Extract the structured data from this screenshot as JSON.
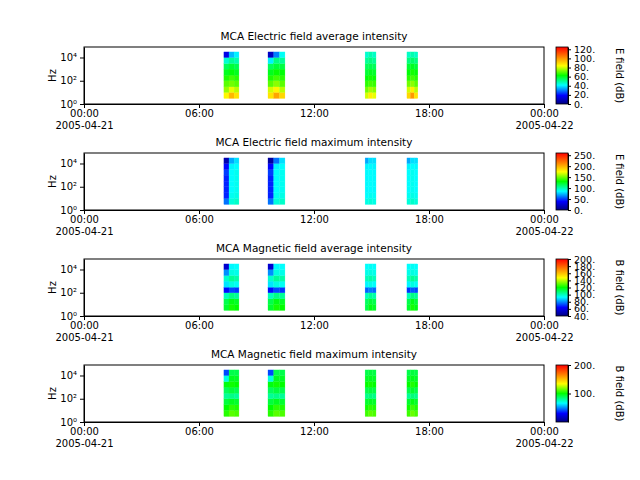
{
  "chart_data": [
    {
      "type": "heatmap",
      "title": "MCA  Electric field average intensity",
      "ylabel": "Hz",
      "log": "y",
      "xlim": [
        "2005-04-21 00:00",
        "2005-04-22 00:00"
      ],
      "xticks": [
        {
          "value": "2005-04-21 00:00",
          "label": "00:00\n2005-04-21"
        },
        {
          "value": "2005-04-21 06:00",
          "label": "06:00"
        },
        {
          "value": "2005-04-21 12:00",
          "label": "12:00"
        },
        {
          "value": "2005-04-21 18:00",
          "label": "18:00"
        },
        {
          "value": "2005-04-22 00:00",
          "label": "00:00\n2005-04-22"
        }
      ],
      "ylim": [
        1,
        80000
      ],
      "yticks": [
        {
          "value": 1,
          "label": "10⁰"
        },
        {
          "value": 100,
          "label": "10²"
        },
        {
          "value": 10000,
          "label": "10⁴"
        }
      ],
      "time_bins": [
        [
          "2005-04-21 07:18",
          "2005-04-21 07:34"
        ],
        [
          "2005-04-21 07:34",
          "2005-04-21 07:50"
        ],
        [
          "2005-04-21 07:50",
          "2005-04-21 08:05"
        ],
        [
          "2005-04-21 09:36",
          "2005-04-21 09:54"
        ],
        [
          "2005-04-21 09:54",
          "2005-04-21 10:12"
        ],
        [
          "2005-04-21 10:12",
          "2005-04-21 10:29"
        ],
        [
          "2005-04-21 14:40",
          "2005-04-21 14:51"
        ],
        [
          "2005-04-21 14:51",
          "2005-04-21 15:03"
        ],
        [
          "2005-04-21 15:03",
          "2005-04-21 15:14"
        ],
        [
          "2005-04-21 16:51",
          "2005-04-21 17:02"
        ],
        [
          "2005-04-21 17:02",
          "2005-04-21 17:14"
        ],
        [
          "2005-04-21 17:14",
          "2005-04-21 17:25"
        ]
      ],
      "frequency_bins": [
        3,
        10,
        30,
        100,
        300,
        1000,
        3000,
        10000,
        30000
      ],
      "cells": [
        [
          85,
          75,
          70,
          65,
          60,
          55,
          45,
          15
        ],
        [
          95,
          82,
          72,
          68,
          62,
          58,
          50,
          35
        ],
        [
          88,
          78,
          70,
          66,
          60,
          56,
          48,
          40
        ],
        [
          88,
          80,
          70,
          65,
          60,
          55,
          40,
          10
        ],
        [
          98,
          85,
          74,
          68,
          63,
          58,
          52,
          30
        ],
        [
          90,
          78,
          70,
          66,
          62,
          57,
          50,
          42
        ],
        [
          80,
          72,
          66,
          62,
          58,
          55,
          50,
          45
        ],
        [
          86,
          76,
          68,
          64,
          60,
          56,
          52,
          48
        ],
        [
          82,
          74,
          67,
          63,
          59,
          55,
          50,
          46
        ],
        [
          90,
          80,
          72,
          66,
          62,
          58,
          52,
          46
        ],
        [
          100,
          86,
          74,
          68,
          64,
          60,
          54,
          48
        ],
        [
          88,
          78,
          70,
          66,
          62,
          58,
          52,
          46
        ]
      ],
      "colorbar": {
        "label": "E field (dB)",
        "range": [
          0,
          125
        ],
        "ticks": [
          {
            "value": 0,
            "label": "0."
          },
          {
            "value": 20,
            "label": "20."
          },
          {
            "value": 40,
            "label": "40."
          },
          {
            "value": 60,
            "label": "60."
          },
          {
            "value": 80,
            "label": "80."
          },
          {
            "value": 100,
            "label": "100."
          },
          {
            "value": 120,
            "label": "120."
          }
        ]
      }
    },
    {
      "type": "heatmap",
      "title": "MCA  Electric field maximum intensity",
      "ylabel": "Hz",
      "log": "y",
      "xlim": [
        "2005-04-21 00:00",
        "2005-04-22 00:00"
      ],
      "xticks": [
        {
          "value": "2005-04-21 00:00",
          "label": "00:00\n2005-04-21"
        },
        {
          "value": "2005-04-21 06:00",
          "label": "06:00"
        },
        {
          "value": "2005-04-21 12:00",
          "label": "12:00"
        },
        {
          "value": "2005-04-21 18:00",
          "label": "18:00"
        },
        {
          "value": "2005-04-22 00:00",
          "label": "00:00\n2005-04-22"
        }
      ],
      "ylim": [
        1,
        80000
      ],
      "yticks": [
        {
          "value": 1,
          "label": "10⁰"
        },
        {
          "value": 100,
          "label": "10²"
        },
        {
          "value": 10000,
          "label": "10⁴"
        }
      ],
      "time_bins": [
        [
          "2005-04-21 07:18",
          "2005-04-21 07:34"
        ],
        [
          "2005-04-21 07:34",
          "2005-04-21 07:50"
        ],
        [
          "2005-04-21 07:50",
          "2005-04-21 08:05"
        ],
        [
          "2005-04-21 09:36",
          "2005-04-21 09:54"
        ],
        [
          "2005-04-21 09:54",
          "2005-04-21 10:12"
        ],
        [
          "2005-04-21 10:12",
          "2005-04-21 10:29"
        ],
        [
          "2005-04-21 14:40",
          "2005-04-21 14:51"
        ],
        [
          "2005-04-21 14:51",
          "2005-04-21 15:03"
        ],
        [
          "2005-04-21 15:03",
          "2005-04-21 15:14"
        ],
        [
          "2005-04-21 16:51",
          "2005-04-21 17:02"
        ],
        [
          "2005-04-21 17:02",
          "2005-04-21 17:14"
        ],
        [
          "2005-04-21 17:14",
          "2005-04-21 17:25"
        ]
      ],
      "frequency_bins": [
        3,
        10,
        30,
        100,
        300,
        1000,
        3000,
        10000,
        30000
      ],
      "cells": [
        [
          60,
          45,
          45,
          45,
          45,
          50,
          40,
          15
        ],
        [
          92,
          88,
          86,
          86,
          86,
          86,
          84,
          70
        ],
        [
          95,
          90,
          88,
          88,
          88,
          88,
          86,
          80
        ],
        [
          60,
          45,
          45,
          45,
          45,
          50,
          40,
          10
        ],
        [
          92,
          88,
          86,
          86,
          86,
          86,
          84,
          60
        ],
        [
          95,
          90,
          88,
          88,
          88,
          88,
          86,
          80
        ],
        [
          90,
          86,
          85,
          85,
          85,
          85,
          84,
          70
        ],
        [
          92,
          88,
          86,
          86,
          86,
          86,
          85,
          80
        ],
        [
          90,
          87,
          85,
          85,
          85,
          85,
          84,
          80
        ],
        [
          92,
          88,
          86,
          86,
          86,
          86,
          84,
          70
        ],
        [
          95,
          90,
          88,
          88,
          88,
          88,
          86,
          80
        ],
        [
          92,
          88,
          86,
          86,
          86,
          86,
          85,
          80
        ]
      ],
      "colorbar": {
        "label": "E field (dB)",
        "range": [
          0,
          260
        ],
        "ticks": [
          {
            "value": 0,
            "label": "0."
          },
          {
            "value": 50,
            "label": "50."
          },
          {
            "value": 100,
            "label": "100."
          },
          {
            "value": 150,
            "label": "150."
          },
          {
            "value": 200,
            "label": "200."
          },
          {
            "value": 250,
            "label": "250."
          }
        ]
      }
    },
    {
      "type": "heatmap",
      "title": "MCA  Magnetic field average intensity",
      "ylabel": "Hz",
      "log": "y",
      "xlim": [
        "2005-04-21 00:00",
        "2005-04-22 00:00"
      ],
      "xticks": [
        {
          "value": "2005-04-21 00:00",
          "label": "00:00\n2005-04-21"
        },
        {
          "value": "2005-04-21 06:00",
          "label": "06:00"
        },
        {
          "value": "2005-04-21 12:00",
          "label": "12:00"
        },
        {
          "value": "2005-04-21 18:00",
          "label": "18:00"
        },
        {
          "value": "2005-04-22 00:00",
          "label": "00:00\n2005-04-22"
        }
      ],
      "ylim": [
        1,
        80000
      ],
      "yticks": [
        {
          "value": 1,
          "label": "10⁰"
        },
        {
          "value": 100,
          "label": "10²"
        },
        {
          "value": 10000,
          "label": "10⁴"
        }
      ],
      "time_bins": [
        [
          "2005-04-21 07:18",
          "2005-04-21 07:34"
        ],
        [
          "2005-04-21 07:34",
          "2005-04-21 07:50"
        ],
        [
          "2005-04-21 07:50",
          "2005-04-21 08:05"
        ],
        [
          "2005-04-21 09:36",
          "2005-04-21 09:54"
        ],
        [
          "2005-04-21 09:54",
          "2005-04-21 10:12"
        ],
        [
          "2005-04-21 10:12",
          "2005-04-21 10:29"
        ],
        [
          "2005-04-21 14:40",
          "2005-04-21 14:51"
        ],
        [
          "2005-04-21 14:51",
          "2005-04-21 15:03"
        ],
        [
          "2005-04-21 15:03",
          "2005-04-21 15:14"
        ],
        [
          "2005-04-21 16:51",
          "2005-04-21 17:02"
        ],
        [
          "2005-04-21 17:02",
          "2005-04-21 17:14"
        ],
        [
          "2005-04-21 17:14",
          "2005-04-21 17:25"
        ]
      ],
      "frequency_bins": [
        3,
        10,
        30,
        100,
        300,
        1000,
        3000,
        10000,
        30000
      ],
      "cells": [
        [
          115,
          112,
          100,
          65,
          90,
          98,
          80,
          55
        ],
        [
          122,
          118,
          106,
          72,
          96,
          104,
          96,
          92
        ],
        [
          120,
          116,
          104,
          70,
          94,
          102,
          95,
          93
        ],
        [
          115,
          112,
          100,
          65,
          90,
          98,
          80,
          55
        ],
        [
          122,
          118,
          106,
          72,
          96,
          104,
          96,
          92
        ],
        [
          120,
          116,
          104,
          70,
          94,
          102,
          95,
          93
        ],
        [
          112,
          110,
          100,
          75,
          92,
          100,
          95,
          93
        ],
        [
          118,
          114,
          104,
          78,
          95,
          102,
          96,
          94
        ],
        [
          116,
          112,
          102,
          76,
          93,
          100,
          95,
          93
        ],
        [
          115,
          112,
          100,
          70,
          92,
          100,
          95,
          93
        ],
        [
          122,
          118,
          106,
          74,
          96,
          104,
          96,
          94
        ],
        [
          118,
          114,
          104,
          72,
          94,
          102,
          95,
          93
        ]
      ],
      "colorbar": {
        "label": "B field (dB)",
        "range": [
          40,
          200
        ],
        "ticks": [
          {
            "value": 40,
            "label": "40."
          },
          {
            "value": 60,
            "label": "60."
          },
          {
            "value": 80,
            "label": "80."
          },
          {
            "value": 100,
            "label": "100."
          },
          {
            "value": 120,
            "label": "120."
          },
          {
            "value": 140,
            "label": "140."
          },
          {
            "value": 160,
            "label": "160."
          },
          {
            "value": 180,
            "label": "180."
          },
          {
            "value": 200,
            "label": "200."
          }
        ]
      }
    },
    {
      "type": "heatmap",
      "title": "MCA  Magnetic field maximum intensity",
      "ylabel": "Hz",
      "log": "y",
      "xlim": [
        "2005-04-21 00:00",
        "2005-04-22 00:00"
      ],
      "xticks": [
        {
          "value": "2005-04-21 00:00",
          "label": "00:00\n2005-04-21"
        },
        {
          "value": "2005-04-21 06:00",
          "label": "06:00"
        },
        {
          "value": "2005-04-21 12:00",
          "label": "12:00"
        },
        {
          "value": "2005-04-21 18:00",
          "label": "18:00"
        },
        {
          "value": "2005-04-22 00:00",
          "label": "00:00\n2005-04-22"
        }
      ],
      "ylim": [
        1,
        80000
      ],
      "yticks": [
        {
          "value": 1,
          "label": "10⁰"
        },
        {
          "value": 100,
          "label": "10²"
        },
        {
          "value": 10000,
          "label": "10⁴"
        }
      ],
      "time_bins": [
        [
          "2005-04-21 07:18",
          "2005-04-21 07:34"
        ],
        [
          "2005-04-21 07:34",
          "2005-04-21 07:50"
        ],
        [
          "2005-04-21 07:50",
          "2005-04-21 08:05"
        ],
        [
          "2005-04-21 09:36",
          "2005-04-21 09:54"
        ],
        [
          "2005-04-21 09:54",
          "2005-04-21 10:12"
        ],
        [
          "2005-04-21 10:12",
          "2005-04-21 10:29"
        ],
        [
          "2005-04-21 14:40",
          "2005-04-21 14:51"
        ],
        [
          "2005-04-21 14:51",
          "2005-04-21 15:03"
        ],
        [
          "2005-04-21 15:03",
          "2005-04-21 15:14"
        ],
        [
          "2005-04-21 16:51",
          "2005-04-21 17:02"
        ],
        [
          "2005-04-21 17:02",
          "2005-04-21 17:14"
        ],
        [
          "2005-04-21 17:14",
          "2005-04-21 17:25"
        ]
      ],
      "frequency_bins": [
        3,
        10,
        30,
        100,
        300,
        1000,
        3000,
        10000,
        30000
      ],
      "cells": [
        [
          105,
          100,
          92,
          80,
          88,
          98,
          70,
          40
        ],
        [
          112,
          106,
          96,
          82,
          92,
          102,
          96,
          90
        ],
        [
          110,
          104,
          94,
          80,
          90,
          100,
          95,
          90
        ],
        [
          105,
          100,
          92,
          80,
          88,
          98,
          70,
          40
        ],
        [
          112,
          106,
          96,
          82,
          92,
          102,
          96,
          90
        ],
        [
          110,
          104,
          94,
          80,
          90,
          100,
          95,
          90
        ],
        [
          108,
          102,
          94,
          82,
          90,
          100,
          95,
          90
        ],
        [
          112,
          106,
          96,
          84,
          92,
          102,
          96,
          92
        ],
        [
          110,
          104,
          95,
          82,
          91,
          100,
          95,
          91
        ],
        [
          108,
          102,
          94,
          80,
          90,
          100,
          95,
          90
        ],
        [
          114,
          108,
          98,
          84,
          94,
          104,
          97,
          92
        ],
        [
          110,
          104,
          95,
          82,
          91,
          100,
          95,
          91
        ]
      ],
      "colorbar": {
        "label": "B field (dB)",
        "range": [
          0,
          200
        ],
        "ticks": [
          {
            "value": 100,
            "label": "100."
          },
          {
            "value": 200,
            "label": "200."
          }
        ]
      }
    }
  ]
}
